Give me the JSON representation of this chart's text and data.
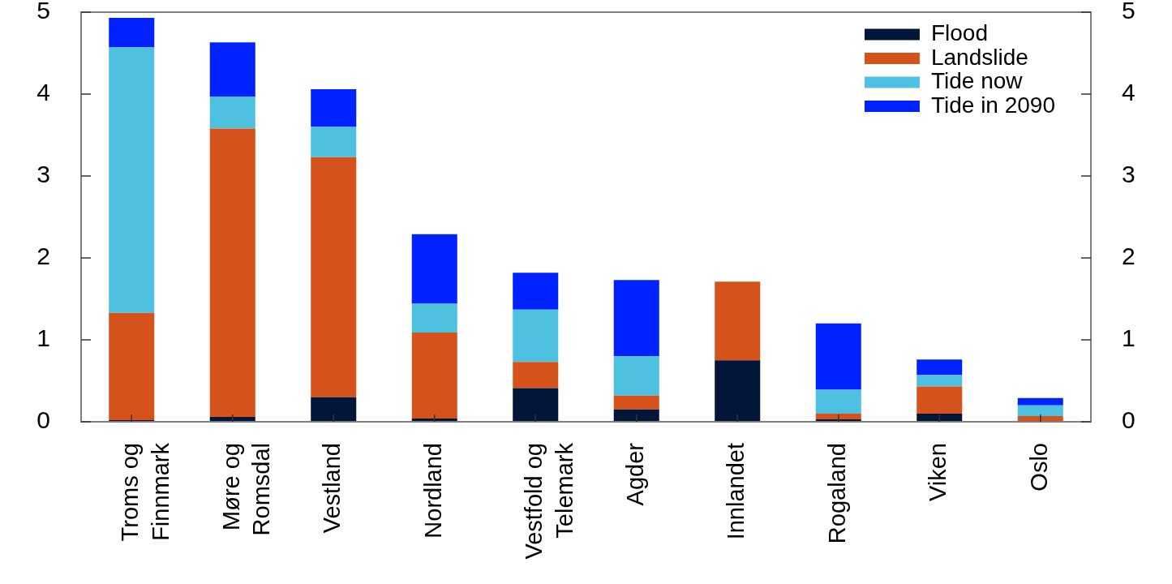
{
  "chart_data": {
    "type": "bar",
    "stacked": true,
    "categories": [
      "Troms og Finnmark",
      "Møre og Romsdal",
      "Vestland",
      "Nordland",
      "Vestfold og Telemark",
      "Agder",
      "Innlandet",
      "Rogaland",
      "Viken",
      "Oslo"
    ],
    "series": [
      {
        "name": "Flood",
        "color": "#011638",
        "values": [
          0.02,
          0.06,
          0.3,
          0.04,
          0.41,
          0.15,
          0.75,
          0.03,
          0.1,
          0
        ]
      },
      {
        "name": "Landslide",
        "color": "#d5531a",
        "values": [
          1.31,
          3.52,
          2.93,
          1.05,
          0.32,
          0.17,
          0.96,
          0.07,
          0.33,
          0.07
        ]
      },
      {
        "name": "Tide now",
        "color": "#4ec1e0",
        "values": [
          3.24,
          0.39,
          0.37,
          0.35,
          0.64,
          0.48,
          0,
          0.29,
          0.14,
          0.13
        ]
      },
      {
        "name": "Tide in 2090",
        "color": "#0022ff",
        "values": [
          0.36,
          0.66,
          0.46,
          0.85,
          0.45,
          0.93,
          0,
          0.81,
          0.19,
          0.09
        ]
      }
    ],
    "ylim": [
      0,
      5
    ],
    "yticks": [
      0,
      1,
      2,
      3,
      4,
      5
    ],
    "y2lim": [
      0,
      5
    ],
    "y2ticks": [
      0,
      1,
      2,
      3,
      4,
      5
    ],
    "grid": false,
    "legend": "top right"
  }
}
